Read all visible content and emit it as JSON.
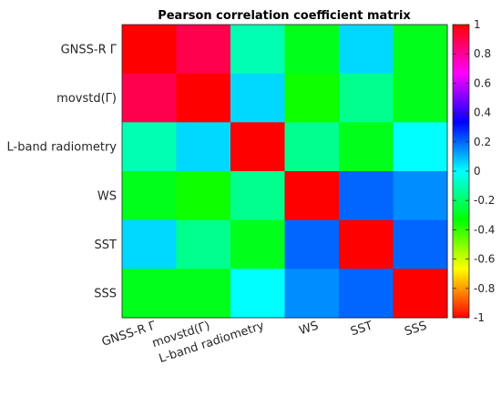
{
  "chart_data": {
    "type": "heatmap",
    "title": "Pearson correlation coefficient matrix",
    "categories": [
      "GNSS-R Γ",
      "movstd(Γ)",
      "L-band radiometry",
      "WS",
      "SST",
      "SSS"
    ],
    "values": [
      [
        1.0,
        0.9,
        -0.1,
        -0.3,
        0.05,
        -0.3
      ],
      [
        0.9,
        1.0,
        0.05,
        -0.35,
        -0.15,
        -0.3
      ],
      [
        -0.1,
        0.05,
        1.0,
        -0.15,
        -0.3,
        0.0
      ],
      [
        -0.3,
        -0.35,
        -0.15,
        1.0,
        0.2,
        0.15
      ],
      [
        0.05,
        -0.15,
        -0.3,
        0.2,
        1.0,
        0.2
      ],
      [
        -0.3,
        -0.3,
        0.0,
        0.15,
        0.2,
        1.0
      ]
    ],
    "colorbar": {
      "range": [
        -1,
        1
      ],
      "ticks": [
        "1",
        "0.8",
        "0.6",
        "0.4",
        "0.2",
        "0",
        "-0.2",
        "-0.4",
        "-0.6",
        "-0.8",
        "-1"
      ],
      "colormap": [
        "#ff0000",
        "#ff8000",
        "#ffff00",
        "#80ff00",
        "#00ff00",
        "#00ff80",
        "#00ffff",
        "#0080ff",
        "#0000ff",
        "#8000ff",
        "#ff00ff",
        "#ff0080",
        "#ff0000"
      ]
    }
  }
}
